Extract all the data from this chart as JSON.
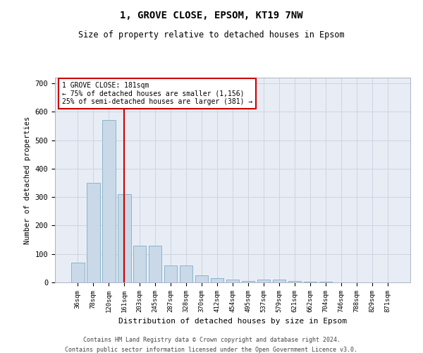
{
  "title1": "1, GROVE CLOSE, EPSOM, KT19 7NW",
  "title2": "Size of property relative to detached houses in Epsom",
  "xlabel": "Distribution of detached houses by size in Epsom",
  "ylabel": "Number of detached properties",
  "categories": [
    "36sqm",
    "78sqm",
    "120sqm",
    "161sqm",
    "203sqm",
    "245sqm",
    "287sqm",
    "328sqm",
    "370sqm",
    "412sqm",
    "454sqm",
    "495sqm",
    "537sqm",
    "579sqm",
    "621sqm",
    "662sqm",
    "704sqm",
    "746sqm",
    "788sqm",
    "829sqm",
    "871sqm"
  ],
  "values": [
    70,
    350,
    570,
    310,
    130,
    130,
    60,
    60,
    25,
    15,
    10,
    5,
    10,
    10,
    5,
    3,
    2,
    1,
    1,
    1,
    1
  ],
  "bar_color": "#c9d9e8",
  "bar_edge_color": "#8ab4cc",
  "vline_color": "#cc0000",
  "annotation_text": "1 GROVE CLOSE: 181sqm\n← 75% of detached houses are smaller (1,156)\n25% of semi-detached houses are larger (381) →",
  "annotation_box_color": "#ffffff",
  "annotation_box_edge": "#cc0000",
  "ylim": [
    0,
    720
  ],
  "yticks": [
    0,
    100,
    200,
    300,
    400,
    500,
    600,
    700
  ],
  "grid_color": "#cdd5e0",
  "background_color": "#e8edf5",
  "footer1": "Contains HM Land Registry data © Crown copyright and database right 2024.",
  "footer2": "Contains public sector information licensed under the Open Government Licence v3.0."
}
